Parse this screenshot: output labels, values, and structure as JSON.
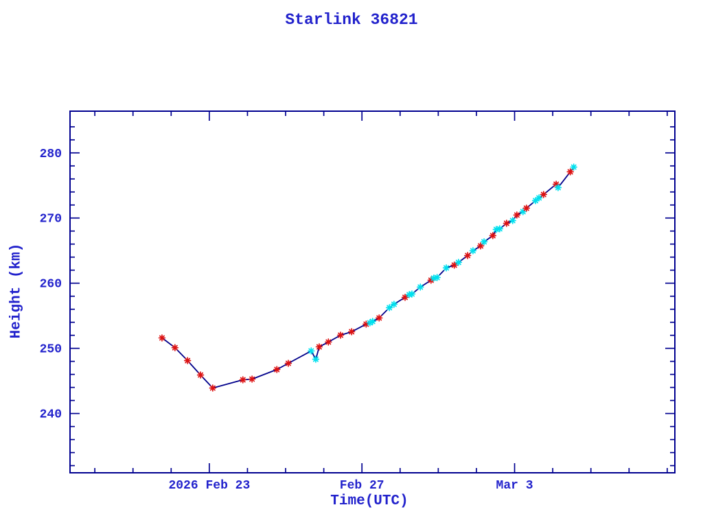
{
  "chart": {
    "title": "Starlink 36821",
    "xlabel": "Time(UTC)",
    "ylabel": "Height (km)"
  },
  "colors": {
    "background": "#ffffff",
    "text": "#2222cc",
    "axis": "#000090",
    "curve": "#00008b",
    "observed_marker": "#dd1111",
    "predicted_marker": "#00e0ee"
  },
  "chart_data": {
    "type": "line",
    "title": "Starlink 36821",
    "xlabel": "Time(UTC)",
    "ylabel": "Height (km)",
    "grid": false,
    "legend": null,
    "x_axis": {
      "unit": "days since 2026 Feb 19 00:00 UTC",
      "range": [
        0.35,
        16.2
      ],
      "major_ticks": [
        {
          "t": 4,
          "label": "2026 Feb 23"
        },
        {
          "t": 8,
          "label": "Feb 27"
        },
        {
          "t": 12,
          "label": "Mar  3"
        }
      ],
      "minor_tick_interval_days": 1,
      "minor_tick_range": [
        1,
        16
      ]
    },
    "y_axis": {
      "range": [
        230.9,
        286.4
      ],
      "major_ticks": [
        240,
        250,
        260,
        270,
        280
      ],
      "minor_tick_interval": 2,
      "minor_tick_range": [
        232,
        284
      ]
    },
    "series_note": "single navy polyline through all points in time order; red markers = observed, cyan markers = predicted",
    "points_format": [
      "t_days_since_2026_Feb_19_00UTC",
      "height_km",
      "marker (r=red observed, c=cyan predicted)"
    ],
    "points": [
      [
        2.76,
        251.6,
        "r"
      ],
      [
        3.1,
        250.1,
        "r"
      ],
      [
        3.43,
        248.12,
        "r"
      ],
      [
        3.77,
        245.91,
        "r"
      ],
      [
        4.09,
        243.91,
        "r"
      ],
      [
        4.88,
        245.17,
        "r"
      ],
      [
        5.12,
        245.28,
        "r"
      ],
      [
        5.77,
        246.75,
        "r"
      ],
      [
        6.07,
        247.7,
        "r"
      ],
      [
        6.67,
        249.6,
        "c"
      ],
      [
        6.79,
        248.33,
        "c"
      ],
      [
        6.88,
        250.23,
        "r"
      ],
      [
        7.12,
        250.97,
        "r"
      ],
      [
        7.44,
        252.02,
        "r"
      ],
      [
        7.73,
        252.55,
        "r"
      ],
      [
        8.11,
        253.71,
        "r"
      ],
      [
        8.21,
        253.92,
        "c"
      ],
      [
        8.28,
        254.13,
        "c"
      ],
      [
        8.45,
        254.66,
        "r"
      ],
      [
        8.72,
        256.24,
        "c"
      ],
      [
        8.84,
        256.76,
        "c"
      ],
      [
        9.13,
        257.82,
        "r"
      ],
      [
        9.24,
        258.24,
        "c"
      ],
      [
        9.31,
        258.34,
        "c"
      ],
      [
        9.53,
        259.4,
        "c"
      ],
      [
        9.81,
        260.45,
        "r"
      ],
      [
        9.88,
        260.77,
        "c"
      ],
      [
        9.97,
        260.87,
        "c"
      ],
      [
        10.21,
        262.35,
        "c"
      ],
      [
        10.42,
        262.77,
        "r"
      ],
      [
        10.53,
        263.19,
        "c"
      ],
      [
        10.77,
        264.24,
        "r"
      ],
      [
        10.91,
        264.98,
        "c"
      ],
      [
        11.11,
        265.72,
        "r"
      ],
      [
        11.2,
        266.35,
        "c"
      ],
      [
        11.43,
        267.3,
        "r"
      ],
      [
        11.52,
        268.25,
        "c"
      ],
      [
        11.61,
        268.35,
        "c"
      ],
      [
        11.79,
        269.19,
        "r"
      ],
      [
        11.95,
        269.61,
        "c"
      ],
      [
        12.06,
        270.46,
        "r"
      ],
      [
        12.22,
        270.98,
        "c"
      ],
      [
        12.31,
        271.51,
        "r"
      ],
      [
        12.55,
        272.67,
        "c"
      ],
      [
        12.64,
        273.09,
        "c"
      ],
      [
        12.76,
        273.61,
        "r"
      ],
      [
        13.09,
        275.19,
        "r"
      ],
      [
        13.14,
        274.67,
        "c"
      ],
      [
        13.46,
        277.09,
        "r"
      ],
      [
        13.55,
        277.82,
        "c"
      ]
    ]
  }
}
